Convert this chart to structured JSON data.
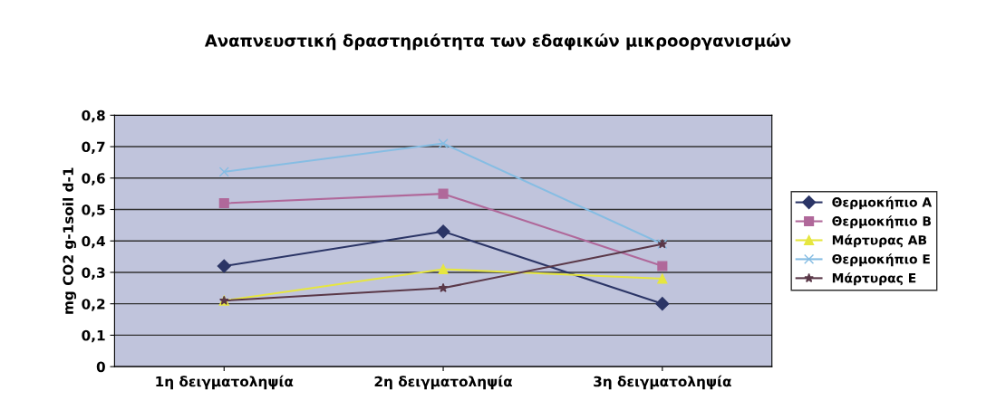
{
  "chart_data": {
    "type": "line",
    "title": "Αναπνευστική δραστηριότητα των εδαφικών μικροοργανισμών",
    "ylabel": "mg CO2 g-1soil d-1",
    "categories": [
      "1η δειγματοληψία",
      "2η δειγματοληψία",
      "3η δειγματοληψία"
    ],
    "series": [
      {
        "name": "Θερμοκήπιο Α",
        "color": "#2b3566",
        "marker": "diamond",
        "values": [
          0.32,
          0.43,
          0.2
        ]
      },
      {
        "name": "Θερμοκήπιο Β",
        "color": "#b0689a",
        "marker": "square",
        "values": [
          0.52,
          0.55,
          0.32
        ]
      },
      {
        "name": "Μάρτυρας ΑΒ",
        "color": "#e6e640",
        "marker": "triangle",
        "values": [
          0.21,
          0.31,
          0.28
        ]
      },
      {
        "name": "Θερμοκήπιο Ε",
        "color": "#86bde3",
        "marker": "cross",
        "values": [
          0.62,
          0.71,
          0.39
        ]
      },
      {
        "name": "Μάρτυρας Ε",
        "color": "#5a3848",
        "marker": "star",
        "values": [
          0.21,
          0.25,
          0.39
        ]
      }
    ],
    "ylim": [
      0,
      0.8
    ],
    "yticks": [
      {
        "value": 0,
        "label": "0"
      },
      {
        "value": 0.1,
        "label": "0,1"
      },
      {
        "value": 0.2,
        "label": "0,2"
      },
      {
        "value": 0.3,
        "label": "0,3"
      },
      {
        "value": 0.4,
        "label": "0,4"
      },
      {
        "value": 0.5,
        "label": "0,5"
      },
      {
        "value": 0.6,
        "label": "0,6"
      },
      {
        "value": 0.7,
        "label": "0,7"
      },
      {
        "value": 0.8,
        "label": "0,8"
      }
    ],
    "grid": "y",
    "legend": "right"
  }
}
